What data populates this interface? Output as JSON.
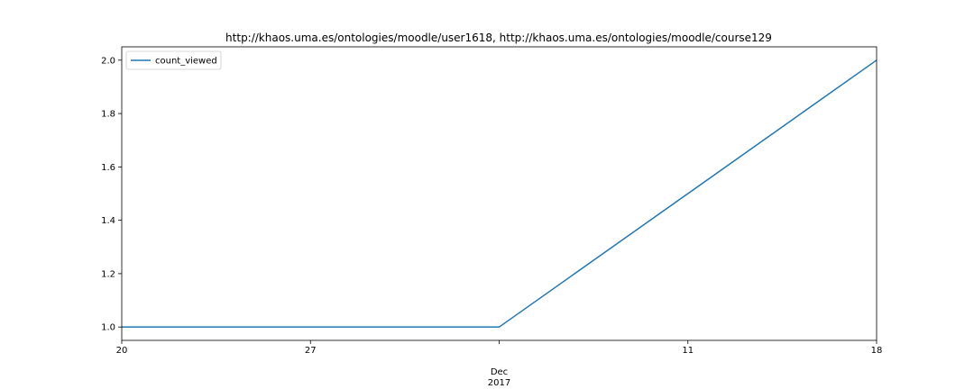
{
  "chart_data": {
    "type": "line",
    "title": "http://khaos.uma.es/ontologies/moodle/user1618, http://khaos.uma.es/ontologies/moodle/course129",
    "xlabel": "",
    "ylabel": "",
    "x": [
      "2017-11-20",
      "2017-12-04",
      "2017-12-18"
    ],
    "series": [
      {
        "name": "count_viewed",
        "values": [
          1.0,
          1.0,
          2.0
        ],
        "color": "#1f77b4"
      }
    ],
    "xlim": [
      "2017-11-20",
      "2017-12-18"
    ],
    "ylim": [
      0.95,
      2.05
    ],
    "x_ticks": [
      {
        "x": "2017-11-20",
        "label": "20"
      },
      {
        "x": "2017-11-27",
        "label": "27"
      },
      {
        "x": "2017-12-04",
        "label": "Dec",
        "label2": "2017"
      },
      {
        "x": "2017-12-11",
        "label": "11"
      },
      {
        "x": "2017-12-18",
        "label": "18"
      }
    ],
    "y_ticks": [
      {
        "y": 1.0,
        "label": "1.0"
      },
      {
        "y": 1.2,
        "label": "1.2"
      },
      {
        "y": 1.4,
        "label": "1.4"
      },
      {
        "y": 1.6,
        "label": "1.6"
      },
      {
        "y": 1.8,
        "label": "1.8"
      },
      {
        "y": 2.0,
        "label": "2.0"
      }
    ],
    "grid": false,
    "legend": {
      "position": "top-left"
    }
  }
}
